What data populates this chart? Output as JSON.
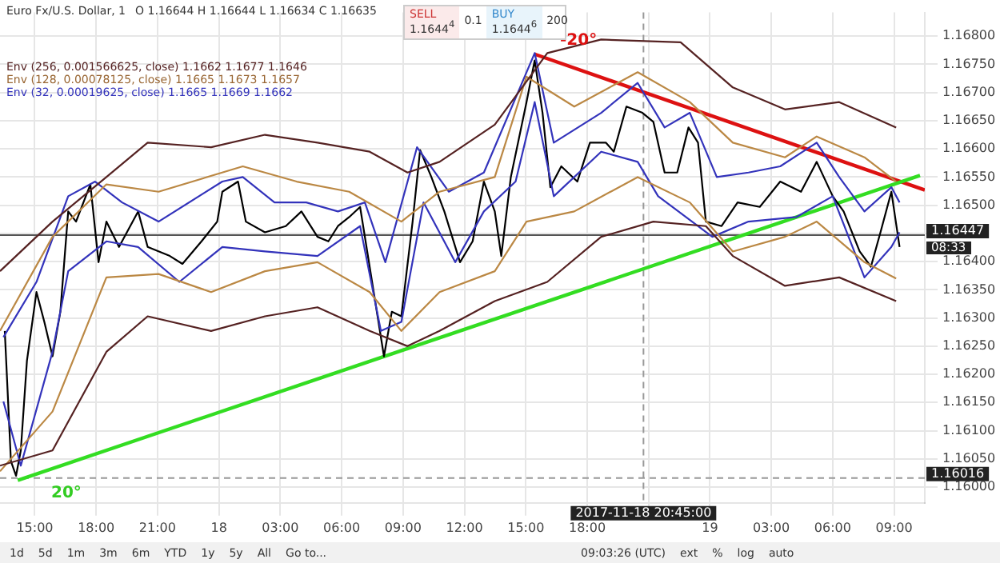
{
  "chart_data": {
    "type": "line",
    "title": "Euro Fx/U.S. Dollar, 1",
    "subtitle": "O 1.16644  H 1.16644  L 1.16634  C 1.16635",
    "xlim": [
      "2017-11-17T13:18",
      "2017-11-19T10:30"
    ],
    "ylim": [
      1.15972,
      1.16842
    ],
    "xticks": [
      {
        "value": "2017-11-17T15:00",
        "label": "15:00"
      },
      {
        "value": "2017-11-17T18:00",
        "label": "18:00"
      },
      {
        "value": "2017-11-17T21:00",
        "label": "21:00"
      },
      {
        "value": "2017-11-18T00:00",
        "label": "18"
      },
      {
        "value": "2017-11-18T03:00",
        "label": "03:00"
      },
      {
        "value": "2017-11-18T06:00",
        "label": "06:00"
      },
      {
        "value": "2017-11-18T09:00",
        "label": "09:00"
      },
      {
        "value": "2017-11-18T12:00",
        "label": "12:00"
      },
      {
        "value": "2017-11-18T15:00",
        "label": "15:00"
      },
      {
        "value": "2017-11-18T18:00",
        "label": "18:00"
      },
      {
        "value": "2017-11-18T21:00",
        "label": null
      },
      {
        "value": "2017-11-19T00:00",
        "label": "19"
      },
      {
        "value": "2017-11-19T03:00",
        "label": "03:00"
      },
      {
        "value": "2017-11-19T06:00",
        "label": "06:00"
      },
      {
        "value": "2017-11-19T09:00",
        "label": "09:00"
      }
    ],
    "yticks": [
      {
        "value": 1.16,
        "label": "1.16000"
      },
      {
        "value": 1.1605,
        "label": "1.16050"
      },
      {
        "value": 1.161,
        "label": "1.16100"
      },
      {
        "value": 1.1615,
        "label": "1.16150"
      },
      {
        "value": 1.162,
        "label": "1.16200"
      },
      {
        "value": 1.1625,
        "label": "1.16250"
      },
      {
        "value": 1.163,
        "label": "1.16300"
      },
      {
        "value": 1.1635,
        "label": "1.16350"
      },
      {
        "value": 1.164,
        "label": "1.16400"
      },
      {
        "value": 1.1645,
        "label": null
      },
      {
        "value": 1.165,
        "label": "1.16500"
      },
      {
        "value": 1.1655,
        "label": "1.16550"
      },
      {
        "value": 1.166,
        "label": "1.16600"
      },
      {
        "value": 1.1665,
        "label": "1.16650"
      },
      {
        "value": 1.167,
        "label": "1.16700"
      },
      {
        "value": 1.1675,
        "label": "1.16750"
      },
      {
        "value": 1.168,
        "label": "1.16800"
      }
    ],
    "grid": true,
    "marker": "none",
    "line_style": "solid",
    "series": [
      {
        "color": "#552222",
        "x": [
          "2017-11-17T13:18",
          "2017-11-17T15:52",
          "2017-11-17T18:30",
          "2017-11-17T20:31",
          "2017-11-17T23:37",
          "2017-11-18T02:15",
          "2017-11-18T04:49",
          "2017-11-18T07:22",
          "2017-11-18T09:13",
          "2017-11-18T10:47",
          "2017-11-18T13:29",
          "2017-11-18T16:03",
          "2017-11-18T18:41",
          "2017-11-18T22:34",
          "2017-11-19T01:07",
          "2017-11-19T03:40",
          "2017-11-19T06:19",
          "2017-11-19T09:06"
        ],
        "values": [
          1.16383,
          1.16471,
          1.1655,
          1.16611,
          1.16603,
          1.16625,
          1.16611,
          1.16595,
          1.16558,
          1.16577,
          1.16643,
          1.1677,
          1.16794,
          1.16789,
          1.16709,
          1.1667,
          1.16683,
          1.16638
        ]
      },
      {
        "color": "#552222",
        "x": [
          "2017-11-17T13:18",
          "2017-11-17T15:52",
          "2017-11-17T18:30",
          "2017-11-17T20:31",
          "2017-11-17T23:37",
          "2017-11-18T02:15",
          "2017-11-18T04:49",
          "2017-11-18T07:22",
          "2017-11-18T09:13",
          "2017-11-18T10:47",
          "2017-11-18T13:29",
          "2017-11-18T16:03",
          "2017-11-18T18:41",
          "2017-11-18T21:14",
          "2017-11-18T23:48",
          "2017-11-19T01:07",
          "2017-11-19T03:40",
          "2017-11-19T06:19",
          "2017-11-19T09:06"
        ],
        "values": [
          1.16038,
          1.16065,
          1.1624,
          1.16303,
          1.16277,
          1.16303,
          1.16319,
          1.16277,
          1.1625,
          1.16277,
          1.1633,
          1.16364,
          1.16444,
          1.16471,
          1.16463,
          1.1641,
          1.16357,
          1.16372,
          1.1633
        ]
      },
      {
        "color": "#bb8844",
        "x": [
          "2017-11-17T13:18",
          "2017-11-17T15:52",
          "2017-11-17T18:30",
          "2017-11-17T21:03",
          "2017-11-18T01:10",
          "2017-11-18T03:48",
          "2017-11-18T06:22",
          "2017-11-18T08:55",
          "2017-11-18T10:47",
          "2017-11-18T13:29",
          "2017-11-18T15:02",
          "2017-11-18T17:22",
          "2017-11-18T20:28",
          "2017-11-18T23:01",
          "2017-11-19T01:07",
          "2017-11-19T03:40",
          "2017-11-19T05:13",
          "2017-11-19T07:33",
          "2017-11-19T09:06"
        ],
        "values": [
          1.16277,
          1.16444,
          1.16537,
          1.16524,
          1.16569,
          1.16542,
          1.16524,
          1.16471,
          1.16524,
          1.1655,
          1.16728,
          1.16675,
          1.16736,
          1.16683,
          1.16611,
          1.16585,
          1.16622,
          1.16585,
          1.16542
        ]
      },
      {
        "color": "#bb8844",
        "x": [
          "2017-11-17T13:18",
          "2017-11-17T15:52",
          "2017-11-17T18:30",
          "2017-11-17T21:03",
          "2017-11-17T23:37",
          "2017-11-18T02:15",
          "2017-11-18T04:49",
          "2017-11-18T07:22",
          "2017-11-18T08:55",
          "2017-11-18T10:47",
          "2017-11-18T13:29",
          "2017-11-18T15:02",
          "2017-11-18T17:22",
          "2017-11-18T20:28",
          "2017-11-18T23:01",
          "2017-11-19T01:07",
          "2017-11-19T03:40",
          "2017-11-19T05:13",
          "2017-11-19T07:33",
          "2017-11-19T09:06"
        ],
        "values": [
          1.16028,
          1.16134,
          1.16372,
          1.16378,
          1.16346,
          1.16383,
          1.16399,
          1.16346,
          1.16277,
          1.16346,
          1.16383,
          1.16471,
          1.16489,
          1.1655,
          1.16505,
          1.16418,
          1.16444,
          1.16471,
          1.16399,
          1.1637
        ]
      },
      {
        "color": "#3333bb",
        "x": [
          "2017-11-17T13:28",
          "2017-11-17T15:05",
          "2017-11-17T16:38",
          "2017-11-17T17:57",
          "2017-11-17T19:16",
          "2017-11-17T21:03",
          "2017-11-18T00:10",
          "2017-11-18T01:10",
          "2017-11-18T02:43",
          "2017-11-18T04:16",
          "2017-11-18T05:49",
          "2017-11-18T07:08",
          "2017-11-18T08:08",
          "2017-11-18T09:41",
          "2017-11-18T11:14",
          "2017-11-18T12:57",
          "2017-11-18T15:26",
          "2017-11-18T16:22",
          "2017-11-18T18:41",
          "2017-11-18T20:28",
          "2017-11-18T21:47",
          "2017-11-18T23:01",
          "2017-11-19T00:20",
          "2017-11-19T01:53",
          "2017-11-19T03:26",
          "2017-11-19T05:13",
          "2017-11-19T06:19",
          "2017-11-19T07:33",
          "2017-11-19T08:52",
          "2017-11-19T09:16"
        ],
        "values": [
          1.16266,
          1.16364,
          1.16516,
          1.16542,
          1.16505,
          1.16471,
          1.16542,
          1.1655,
          1.16505,
          1.16505,
          1.16489,
          1.16505,
          1.16399,
          1.16603,
          1.16524,
          1.16558,
          1.1677,
          1.16611,
          1.16664,
          1.16717,
          1.16638,
          1.16664,
          1.1655,
          1.16558,
          1.16569,
          1.16611,
          1.1655,
          1.16489,
          1.16532,
          1.16505
        ]
      },
      {
        "color": "#3333bb",
        "x": [
          "2017-11-17T13:28",
          "2017-11-17T14:19",
          "2017-11-17T15:52",
          "2017-11-17T16:38",
          "2017-11-17T18:30",
          "2017-11-17T20:03",
          "2017-11-17T22:04",
          "2017-11-18T00:10",
          "2017-11-18T02:15",
          "2017-11-18T04:49",
          "2017-11-18T06:54",
          "2017-11-18T07:55",
          "2017-11-18T08:55",
          "2017-11-18T10:00",
          "2017-11-18T11:33",
          "2017-11-18T12:57",
          "2017-11-18T14:30",
          "2017-11-18T15:26",
          "2017-11-18T16:22",
          "2017-11-18T18:41",
          "2017-11-18T20:28",
          "2017-11-18T21:28",
          "2017-11-19T00:07",
          "2017-11-19T01:53",
          "2017-11-19T04:13",
          "2017-11-19T06:00",
          "2017-11-19T07:33",
          "2017-11-19T08:52",
          "2017-11-19T09:16"
        ],
        "values": [
          1.16152,
          1.16038,
          1.1624,
          1.16383,
          1.16436,
          1.16426,
          1.16364,
          1.16426,
          1.16418,
          1.1641,
          1.16463,
          1.16277,
          1.16293,
          1.16505,
          1.16399,
          1.16489,
          1.16542,
          1.16683,
          1.16516,
          1.16595,
          1.16577,
          1.16516,
          1.16444,
          1.16471,
          1.16479,
          1.16516,
          1.16372,
          1.16426,
          1.16452
        ]
      },
      {
        "color": "#000000",
        "x": [
          "2017-11-17T13:32",
          "2017-11-17T13:50",
          "2017-11-17T14:05",
          "2017-11-17T14:19",
          "2017-11-17T14:37",
          "2017-11-17T15:05",
          "2017-11-17T15:28",
          "2017-11-17T15:52",
          "2017-11-17T16:15",
          "2017-11-17T16:38",
          "2017-11-17T17:01",
          "2017-11-17T17:43",
          "2017-11-17T18:07",
          "2017-11-17T18:30",
          "2017-11-17T19:07",
          "2017-11-17T20:03",
          "2017-11-17T20:31",
          "2017-11-17T21:36",
          "2017-11-17T22:13",
          "2017-11-17T23:09",
          "2017-11-17T23:55",
          "2017-11-18T00:10",
          "2017-11-18T00:56",
          "2017-11-18T01:19",
          "2017-11-18T02:15",
          "2017-11-18T03:16",
          "2017-11-18T04:02",
          "2017-11-18T04:49",
          "2017-11-18T05:21",
          "2017-11-18T05:49",
          "2017-11-18T06:22",
          "2017-11-18T06:54",
          "2017-11-18T07:22",
          "2017-11-18T08:04",
          "2017-11-18T08:27",
          "2017-11-18T08:55",
          "2017-11-18T09:28",
          "2017-11-18T09:50",
          "2017-11-18T10:23",
          "2017-11-18T11:01",
          "2017-11-18T11:47",
          "2017-11-18T12:24",
          "2017-11-18T12:57",
          "2017-11-18T13:29",
          "2017-11-18T13:48",
          "2017-11-18T14:16",
          "2017-11-18T15:02",
          "2017-11-18T15:26",
          "2017-11-18T15:49",
          "2017-11-18T16:12",
          "2017-11-18T16:44",
          "2017-11-18T17:31",
          "2017-11-18T18:08",
          "2017-11-18T18:55",
          "2017-11-18T19:18",
          "2017-11-18T19:55",
          "2017-11-18T20:42",
          "2017-11-18T21:14",
          "2017-11-18T21:47",
          "2017-11-18T22:24",
          "2017-11-18T22:57",
          "2017-11-18T23:25",
          "2017-11-18T23:48",
          "2017-11-19T00:34",
          "2017-11-19T01:21",
          "2017-11-19T02:26",
          "2017-11-19T03:26",
          "2017-11-19T04:27",
          "2017-11-19T05:13",
          "2017-11-19T06:00",
          "2017-11-19T06:32",
          "2017-11-19T07:19",
          "2017-11-19T07:52",
          "2017-11-19T08:20",
          "2017-11-19T08:52",
          "2017-11-19T09:16"
        ],
        "values": [
          1.16277,
          1.16046,
          1.1602,
          1.16065,
          1.16224,
          1.16346,
          1.16293,
          1.16232,
          1.16311,
          1.16489,
          1.16471,
          1.16537,
          1.16399,
          1.16471,
          1.16426,
          1.16489,
          1.16426,
          1.1641,
          1.16396,
          1.16436,
          1.16471,
          1.16524,
          1.16542,
          1.16471,
          1.16452,
          1.16463,
          1.16489,
          1.16444,
          1.16436,
          1.16463,
          1.16479,
          1.16497,
          1.16391,
          1.16232,
          1.16311,
          1.16303,
          1.16471,
          1.16598,
          1.1655,
          1.16489,
          1.16399,
          1.16436,
          1.16542,
          1.16489,
          1.1641,
          1.1655,
          1.16683,
          1.16757,
          1.16664,
          1.16532,
          1.16569,
          1.16542,
          1.16611,
          1.16611,
          1.16595,
          1.16675,
          1.16664,
          1.16648,
          1.16558,
          1.16558,
          1.16638,
          1.16611,
          1.16471,
          1.16463,
          1.16505,
          1.16497,
          1.16542,
          1.16524,
          1.16577,
          1.16516,
          1.16489,
          1.16418,
          1.16391,
          1.16452,
          1.16524,
          1.16426
        ]
      },
      {
        "color": "#33dd22",
        "x": [
          "2017-11-17T14:10",
          "2017-11-19T10:16"
        ],
        "values": [
          1.16012,
          1.16553
        ]
      },
      {
        "color": "#dd1111",
        "x": [
          "2017-11-18T15:26",
          "2017-11-19T10:30"
        ],
        "values": [
          1.16768,
          1.16527
        ]
      }
    ],
    "ref_lines": [
      {
        "axis": "y",
        "value": 1.16447,
        "label": "1.16447",
        "color": "#555555",
        "line_style": "solid"
      },
      {
        "axis": "y",
        "value": 1.16016,
        "label": "1.16016",
        "color": "#999999",
        "line_style": "dashed"
      },
      {
        "axis": "x",
        "value": "2017-11-18T20:45",
        "label": "2017-11-18 20:45:00",
        "color": "#999999",
        "line_style": "dashed"
      }
    ],
    "annotations": [
      "Env (256, 0.001566625, close)  1.1662  1.1677  1.1646",
      "Env (128, 0.00078125, close)  1.1665  1.1673  1.1657",
      "Env (32, 0.00019625, close)  1.1665  1.1669  1.1662",
      "SELL",
      "1.1644$^{4}$",
      "0.1",
      "BUY",
      "1.1644$^{6}$",
      "200",
      "1d",
      "5d",
      "1m",
      "3m",
      "6m",
      "YTD",
      "1y",
      "5y",
      "All",
      "Go to...",
      "09:03:26 (UTC)",
      "ext",
      "%",
      "log",
      "auto",
      "08:33",
      "20°",
      "-20°"
    ]
  }
}
